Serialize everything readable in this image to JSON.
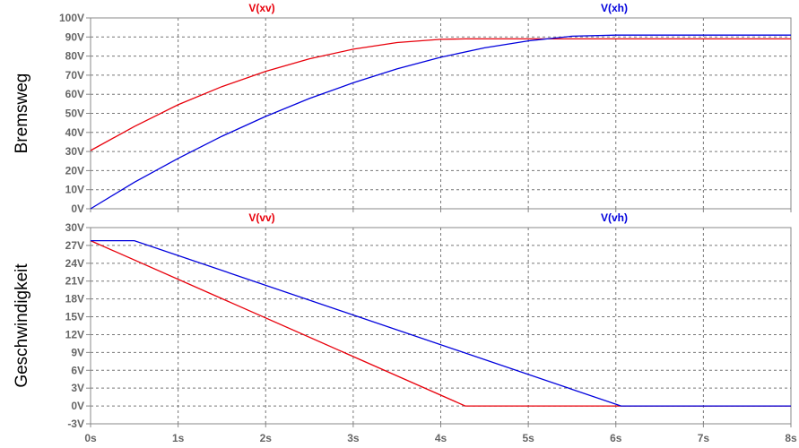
{
  "chart_data": [
    {
      "type": "line",
      "ylabel": "Bremsweg",
      "xlabel": "",
      "x_ticks": [
        "0s",
        "1s",
        "2s",
        "3s",
        "4s",
        "5s",
        "6s",
        "7s",
        "8s"
      ],
      "y_ticks": [
        "0V",
        "10V",
        "20V",
        "30V",
        "40V",
        "50V",
        "60V",
        "70V",
        "80V",
        "90V",
        "100V"
      ],
      "xlim": [
        0,
        8
      ],
      "ylim": [
        0,
        100
      ],
      "grid": true,
      "legend": "top",
      "series": [
        {
          "name": "V(xv)",
          "color": "#e8000b",
          "x": [
            0,
            0.5,
            1,
            1.5,
            2,
            2.5,
            3,
            3.5,
            4,
            4.28,
            5,
            6,
            7,
            8
          ],
          "y": [
            30.5,
            43.1,
            54.5,
            64.0,
            72.0,
            78.6,
            83.6,
            87.1,
            88.8,
            89.0,
            89.0,
            89.0,
            89.0,
            89.0
          ]
        },
        {
          "name": "V(xh)",
          "color": "#0000dd",
          "x": [
            0,
            0.5,
            1,
            1.5,
            2,
            2.5,
            3,
            3.5,
            4,
            4.5,
            5,
            5.5,
            6,
            6.06,
            7,
            8
          ],
          "y": [
            0,
            13.9,
            26.4,
            38.0,
            48.4,
            57.8,
            66.0,
            73.3,
            79.4,
            84.3,
            88.0,
            90.4,
            91.0,
            91.0,
            91.0,
            91.0
          ]
        }
      ]
    },
    {
      "type": "line",
      "ylabel": "Geschwindigkeit",
      "xlabel": "",
      "x_ticks": [
        "0s",
        "1s",
        "2s",
        "3s",
        "4s",
        "5s",
        "6s",
        "7s",
        "8s"
      ],
      "y_ticks": [
        "-3V",
        "0V",
        "3V",
        "6V",
        "9V",
        "12V",
        "15V",
        "18V",
        "21V",
        "24V",
        "27V",
        "30V"
      ],
      "xlim": [
        0,
        8
      ],
      "ylim": [
        -3,
        30
      ],
      "grid": true,
      "legend": "top",
      "series": [
        {
          "name": "V(vv)",
          "color": "#e8000b",
          "x": [
            0,
            4.28,
            8
          ],
          "y": [
            27.8,
            0,
            0
          ]
        },
        {
          "name": "V(vh)",
          "color": "#0000dd",
          "x": [
            0,
            0.5,
            6.06,
            8
          ],
          "y": [
            27.8,
            27.8,
            0,
            0
          ]
        }
      ]
    }
  ]
}
